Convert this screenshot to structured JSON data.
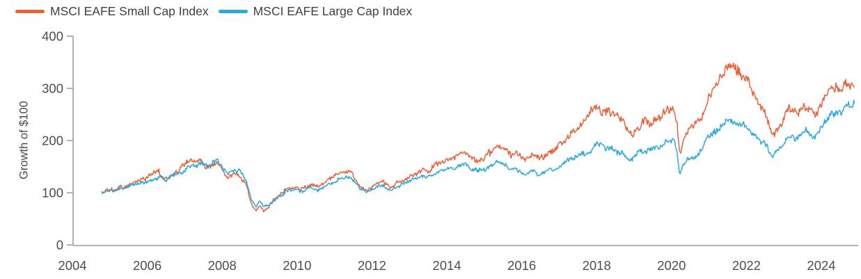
{
  "legend": {
    "items": [
      {
        "label": "MSCI EAFE Small Cap Index",
        "color": "#E8623A"
      },
      {
        "label": "MSCI EAFE Large Cap Index",
        "color": "#2BA8DC"
      }
    ]
  },
  "chart_data": {
    "type": "line",
    "title": "",
    "xlabel": "",
    "ylabel": "Growth of $100",
    "grid": false,
    "legend_position": "top-left",
    "xlim": [
      2004,
      2025
    ],
    "ylim": [
      0,
      400
    ],
    "x_ticks": [
      2004,
      2006,
      2008,
      2010,
      2012,
      2014,
      2016,
      2018,
      2020,
      2022,
      2024
    ],
    "y_ticks": [
      0,
      100,
      200,
      300,
      400
    ],
    "x": [
      2004.79,
      2004.95,
      2005.1,
      2005.3,
      2005.5,
      2005.7,
      2005.9,
      2006.1,
      2006.3,
      2006.45,
      2006.6,
      2006.8,
      2007.0,
      2007.15,
      2007.3,
      2007.42,
      2007.55,
      2007.7,
      2007.85,
      2008.0,
      2008.15,
      2008.35,
      2008.5,
      2008.65,
      2008.78,
      2008.9,
      2009.0,
      2009.12,
      2009.25,
      2009.45,
      2009.65,
      2009.85,
      2010.0,
      2010.15,
      2010.35,
      2010.55,
      2010.75,
      2010.95,
      2011.15,
      2011.3,
      2011.45,
      2011.6,
      2011.75,
      2011.87,
      2012.0,
      2012.15,
      2012.3,
      2012.45,
      2012.65,
      2012.85,
      2013.05,
      2013.25,
      2013.4,
      2013.5,
      2013.7,
      2013.9,
      2014.1,
      2014.3,
      2014.5,
      2014.65,
      2014.8,
      2015.0,
      2015.2,
      2015.4,
      2015.55,
      2015.7,
      2015.85,
      2016.1,
      2016.3,
      2016.47,
      2016.65,
      2016.85,
      2017.05,
      2017.25,
      2017.45,
      2017.65,
      2017.85,
      2018.02,
      2018.15,
      2018.35,
      2018.55,
      2018.75,
      2018.95,
      2019.1,
      2019.3,
      2019.5,
      2019.7,
      2019.9,
      2020.05,
      2020.14,
      2020.22,
      2020.35,
      2020.5,
      2020.65,
      2020.8,
      2020.95,
      2021.1,
      2021.25,
      2021.4,
      2021.55,
      2021.7,
      2021.85,
      2022.0,
      2022.12,
      2022.25,
      2022.4,
      2022.55,
      2022.7,
      2022.82,
      2022.95,
      2023.1,
      2023.25,
      2023.4,
      2023.55,
      2023.7,
      2023.85,
      2024.0,
      2024.15,
      2024.3,
      2024.42,
      2024.55,
      2024.7,
      2024.8,
      2024.88
    ],
    "series": [
      {
        "name": "MSCI EAFE Small Cap Index",
        "color": "#E8623A",
        "values": [
          100,
          104,
          107,
          109,
          114,
          120,
          127,
          134,
          140,
          128,
          134,
          142,
          153,
          161,
          158,
          166,
          152,
          153,
          157,
          141,
          129,
          137,
          128,
          112,
          80,
          67,
          77,
          67,
          73,
          91,
          103,
          110,
          112,
          106,
          118,
          110,
          121,
          131,
          139,
          144,
          139,
          120,
          110,
          104,
          110,
          117,
          119,
          111,
          117,
          123,
          132,
          141,
          146,
          140,
          152,
          161,
          166,
          171,
          175,
          168,
          161,
          166,
          181,
          189,
          183,
          171,
          177,
          161,
          171,
          164,
          173,
          178,
          190,
          205,
          222,
          240,
          255,
          268,
          252,
          258,
          244,
          228,
          213,
          226,
          236,
          238,
          247,
          259,
          267,
          242,
          172,
          209,
          222,
          229,
          241,
          273,
          296,
          318,
          331,
          341,
          335,
          331,
          323,
          296,
          281,
          263,
          241,
          207,
          221,
          233,
          259,
          252,
          248,
          263,
          253,
          247,
          271,
          286,
          311,
          296,
          300,
          317,
          308,
          312
        ]
      },
      {
        "name": "MSCI EAFE Large Cap Index",
        "color": "#2BA8DC",
        "values": [
          100,
          103,
          104,
          107,
          111,
          115,
          120,
          125,
          131,
          123,
          129,
          135,
          144,
          150,
          149,
          157,
          149,
          155,
          161,
          150,
          139,
          146,
          137,
          121,
          89,
          76,
          84,
          73,
          75,
          90,
          100,
          106,
          107,
          101,
          110,
          102,
          112,
          119,
          127,
          132,
          128,
          113,
          106,
          100,
          105,
          111,
          113,
          105,
          111,
          116,
          123,
          130,
          132,
          127,
          137,
          143,
          147,
          150,
          153,
          147,
          141,
          143,
          155,
          161,
          154,
          143,
          147,
          134,
          141,
          135,
          142,
          144,
          152,
          160,
          168,
          175,
          182,
          196,
          186,
          190,
          181,
          172,
          164,
          174,
          181,
          183,
          189,
          196,
          203,
          186,
          131,
          158,
          167,
          172,
          180,
          201,
          213,
          224,
          230,
          235,
          232,
          235,
          231,
          218,
          211,
          199,
          186,
          170,
          179,
          188,
          209,
          205,
          210,
          218,
          211,
          206,
          226,
          241,
          258,
          249,
          255,
          273,
          270,
          274
        ]
      }
    ]
  }
}
